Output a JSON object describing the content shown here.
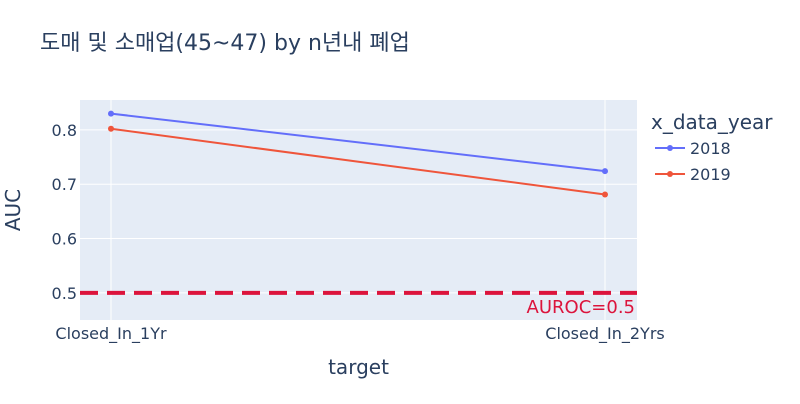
{
  "chart_data": {
    "type": "line",
    "title": "도매 및 소매업(45~47) by n년내 폐업",
    "xlabel": "target",
    "ylabel": "AUC",
    "categories": [
      "Closed_In_1Yr",
      "Closed_In_2Yrs"
    ],
    "y_ticks": [
      0.5,
      0.6,
      0.7,
      0.8
    ],
    "y_tick_labels": [
      "0.5",
      "0.6",
      "0.7",
      "0.8"
    ],
    "ylim": [
      0.45,
      0.855
    ],
    "legend_title": "x_data_year",
    "legend_position": "right",
    "grid": true,
    "series": [
      {
        "name": "2018",
        "values": [
          0.83,
          0.724
        ],
        "color": "#636efa"
      },
      {
        "name": "2019",
        "values": [
          0.802,
          0.681
        ],
        "color": "#ef553b"
      }
    ],
    "reference_line": {
      "y": 0.5,
      "label": "AUROC=0.5",
      "color": "#dc143c",
      "style": "dashed"
    },
    "colors": {
      "plot_bg": "#e5ecf6",
      "text": "#2a3f5f",
      "grid": "#ffffff"
    }
  }
}
